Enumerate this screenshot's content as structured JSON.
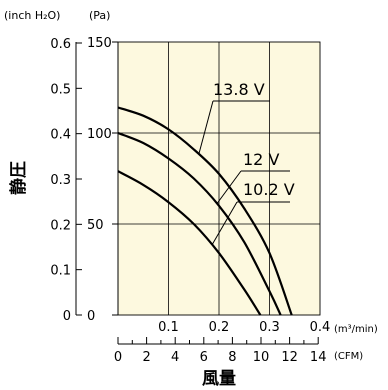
{
  "chart_data": {
    "type": "line",
    "unit_left": "(inch H₂O)",
    "unit_right": "(Pa)",
    "ylabel": "静圧",
    "xlabel": "風量",
    "x_unit_top": "(m³/min)",
    "x_unit_bottom": "(CFM)",
    "inch_ticks": [
      "0",
      "0.1",
      "0.2",
      "0.3",
      "0.4",
      "0.5",
      "0.6"
    ],
    "pa_ticks": [
      "0",
      "50",
      "100",
      "150"
    ],
    "m3_ticks": [
      "0.1",
      "0.2",
      "0.3",
      "0.4"
    ],
    "cfm_ticks": [
      "0",
      "2",
      "4",
      "6",
      "8",
      "10",
      "12",
      "14"
    ],
    "xlim_m3min": [
      0,
      0.4
    ],
    "ylim_pa": [
      0,
      150
    ],
    "grid": true,
    "plot_background": "#fdf9df",
    "series": [
      {
        "name": "13.8 V",
        "x": [
          0,
          0.05,
          0.1,
          0.15,
          0.2,
          0.25,
          0.3,
          0.344
        ],
        "y": [
          114,
          109.5,
          102,
          91,
          77.5,
          58.5,
          34,
          0
        ]
      },
      {
        "name": "12 V",
        "x": [
          0,
          0.05,
          0.1,
          0.15,
          0.2,
          0.25,
          0.3,
          0.322
        ],
        "y": [
          100,
          94.5,
          86,
          75,
          60,
          40,
          13,
          0
        ]
      },
      {
        "name": "10.2 V",
        "x": [
          0,
          0.05,
          0.1,
          0.15,
          0.2,
          0.25,
          0.282
        ],
        "y": [
          79,
          71.5,
          62,
          50,
          34,
          14,
          0
        ]
      }
    ]
  }
}
